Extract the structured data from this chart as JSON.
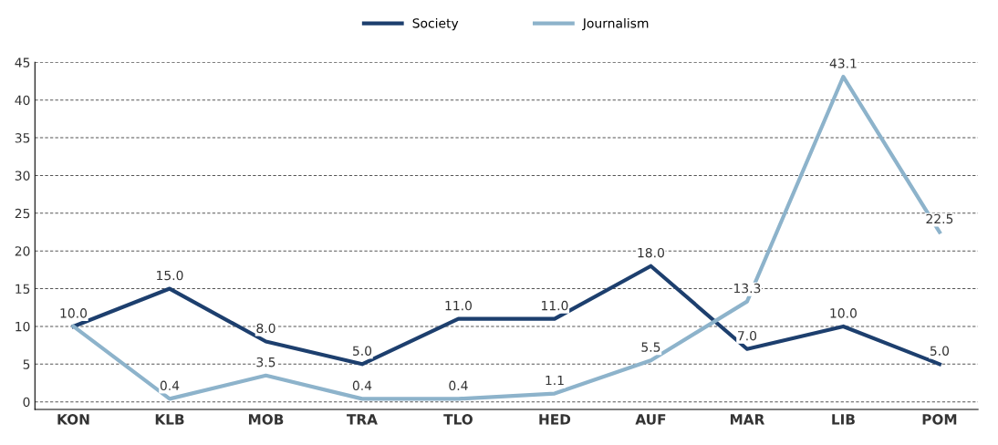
{
  "chart_data": {
    "type": "line",
    "categories": [
      "KON",
      "KLB",
      "MOB",
      "TRA",
      "TLO",
      "HED",
      "AUF",
      "MAR",
      "LIB",
      "POM"
    ],
    "series": [
      {
        "name": "Society",
        "color": "#1d3f6e",
        "values": [
          10.0,
          15.0,
          8.0,
          5.0,
          11.0,
          11.0,
          18.0,
          7.0,
          10.0,
          5.0
        ],
        "value_labels": [
          "10.0",
          "15.0",
          "8.0",
          "5.0",
          "11.0",
          "11.0",
          "18.0",
          "7.0",
          "10.0",
          "5.0"
        ]
      },
      {
        "name": "Journalism",
        "color": "#8db3cb",
        "values": [
          10.0,
          0.4,
          3.5,
          0.4,
          0.4,
          1.1,
          5.5,
          13.3,
          43.1,
          22.5
        ],
        "value_labels": [
          null,
          "0.4",
          "3.5",
          "0.4",
          "0.4",
          "1.1",
          "5.5",
          "13.3",
          "43.1",
          "22.5"
        ]
      }
    ],
    "ylim": [
      -1,
      45
    ],
    "yticks": [
      0,
      5,
      10,
      15,
      20,
      25,
      30,
      35,
      40,
      45
    ],
    "grid": "y",
    "legend": "top",
    "marker": "none",
    "line_style": "solid"
  }
}
